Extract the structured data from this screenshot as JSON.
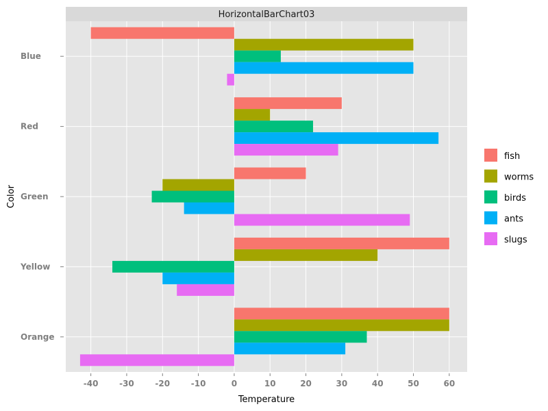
{
  "chart_data": {
    "type": "bar",
    "orientation": "horizontal",
    "title": "HorizontalBarChart03",
    "xlabel": "Temperature",
    "ylabel": "Color",
    "xlim": [
      -47,
      65
    ],
    "xticks": [
      -40,
      -30,
      -20,
      -10,
      0,
      10,
      20,
      30,
      40,
      50,
      60
    ],
    "categories": [
      "Blue",
      "Red",
      "Green",
      "Yellow",
      "Orange"
    ],
    "series": [
      {
        "name": "fish",
        "color": "#F8766D",
        "values": [
          -40,
          30,
          20,
          60,
          60
        ]
      },
      {
        "name": "worms",
        "color": "#A3A500",
        "values": [
          50,
          10,
          -20,
          40,
          60
        ]
      },
      {
        "name": "birds",
        "color": "#00BF7D",
        "values": [
          13,
          22,
          -23,
          -34,
          37
        ]
      },
      {
        "name": "ants",
        "color": "#00B0F6",
        "values": [
          50,
          57,
          -14,
          -20,
          31
        ]
      },
      {
        "name": "slugs",
        "color": "#E76BF3",
        "values": [
          -2,
          29,
          49,
          -16,
          -43
        ]
      }
    ],
    "grid": true,
    "legend_position": "right",
    "panel_background": "#E5E5E5",
    "strip_background": "#D9D9D9",
    "grid_color": "#FFFFFF"
  }
}
